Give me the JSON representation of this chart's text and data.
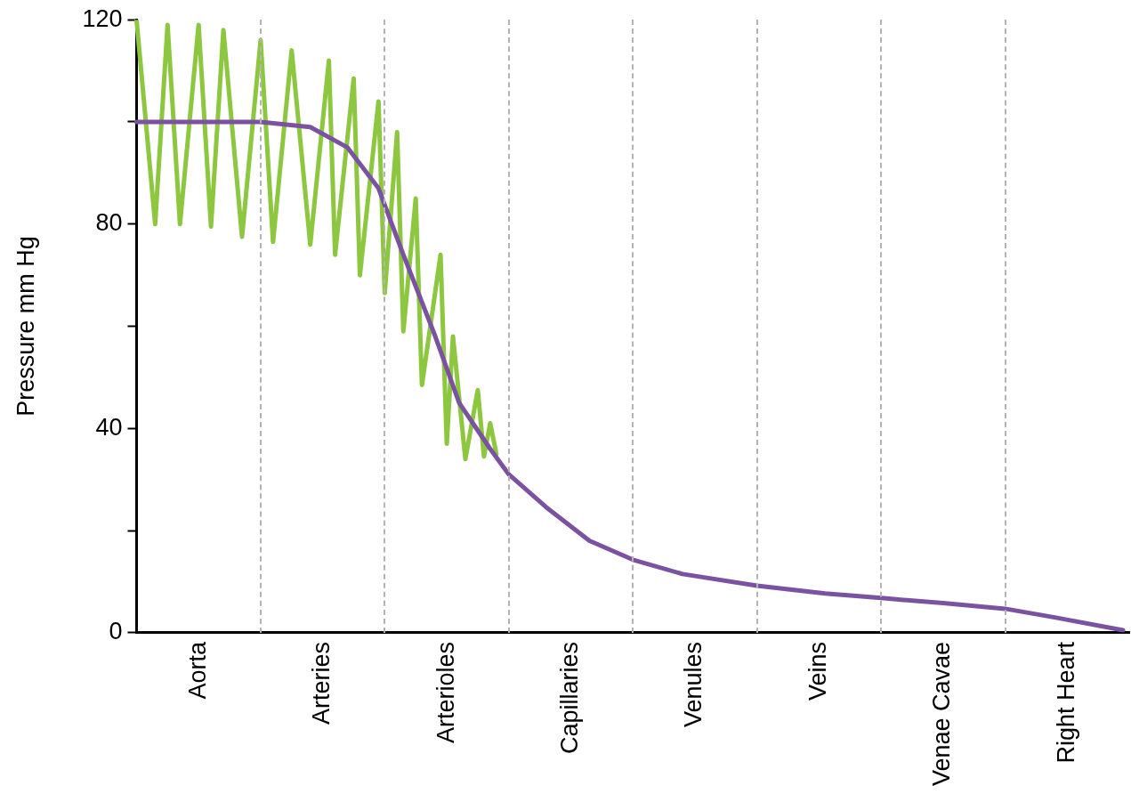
{
  "chart_data": {
    "type": "line",
    "ylabel": "Pressure mm Hg",
    "categories": [
      null,
      null,
      null,
      null,
      null,
      null,
      null,
      null,
      null,
      null,
      "Aorta",
      null,
      null,
      null,
      null,
      null,
      null,
      null,
      null,
      null,
      null,
      null,
      null,
      null,
      null,
      null,
      null,
      null,
      null,
      null,
      "Arteries",
      null,
      null,
      null,
      null,
      null,
      null,
      null,
      null,
      null,
      null,
      null,
      null,
      null,
      null,
      null,
      null,
      null,
      null,
      null,
      "Arterioles",
      null,
      null,
      null,
      null,
      null,
      null,
      null,
      null,
      null,
      null,
      null,
      null,
      null,
      null,
      null,
      null,
      null,
      null,
      null,
      "Capillaries",
      null,
      null,
      null,
      null,
      null,
      null,
      null,
      null,
      null,
      null,
      null,
      null,
      null,
      null,
      null,
      null,
      null,
      null,
      null,
      "Venules",
      null,
      null,
      null,
      null,
      null,
      null,
      null,
      null,
      null,
      null,
      null,
      null,
      null,
      null,
      null,
      null,
      null,
      null,
      null,
      "Veins",
      null,
      null,
      null,
      null,
      null,
      null,
      null,
      null,
      null,
      null,
      null,
      null,
      null,
      null,
      null,
      null,
      null,
      null,
      null,
      "Venae Cavae",
      null,
      null,
      null,
      null,
      null,
      null,
      null,
      null,
      null,
      null,
      null,
      null,
      null,
      null,
      null,
      null,
      null,
      null,
      null,
      "Right Heart",
      null,
      null,
      null,
      null,
      null,
      null,
      null,
      null,
      null,
      null
    ],
    "ylim": [
      0,
      120
    ],
    "yticks": [
      0,
      {
        "value": 20,
        "label": null
      },
      40,
      {
        "value": 60,
        "label": null
      },
      80,
      {
        "value": 100,
        "label": null
      },
      120
    ],
    "legend": false,
    "marker": "none",
    "line_style": "solid",
    "series": [
      {
        "color": "#7b52a1",
        "values": [
          100,
          null,
          null,
          null,
          null,
          null,
          null,
          null,
          null,
          null,
          100,
          null,
          null,
          null,
          null,
          null,
          null,
          null,
          null,
          null,
          100,
          null,
          null,
          null,
          null,
          null,
          null,
          null,
          99,
          null,
          null,
          null,
          null,
          null,
          95,
          null,
          null,
          null,
          null,
          87,
          null,
          null,
          null,
          74,
          null,
          null,
          null,
          null,
          58.5,
          null,
          null,
          null,
          45,
          null,
          null,
          null,
          null,
          36,
          null,
          null,
          31,
          null,
          null,
          null,
          null,
          null,
          24.6,
          null,
          null,
          null,
          null,
          null,
          null,
          18,
          null,
          null,
          null,
          null,
          null,
          null,
          14.3,
          null,
          null,
          null,
          null,
          null,
          null,
          null,
          11.5,
          null,
          null,
          null,
          null,
          null,
          null,
          null,
          null,
          null,
          null,
          null,
          9.2,
          null,
          null,
          null,
          null,
          null,
          null,
          null,
          null,
          null,
          null,
          7.7,
          null,
          null,
          null,
          null,
          null,
          null,
          null,
          null,
          6.8,
          null,
          null,
          null,
          null,
          null,
          null,
          null,
          null,
          null,
          5.8,
          null,
          null,
          null,
          null,
          null,
          null,
          null,
          null,
          null,
          4.7,
          null,
          null,
          null,
          null,
          null,
          null,
          null,
          3,
          null,
          null,
          null,
          null,
          null,
          null,
          null,
          null,
          null,
          null,
          0.5,
          null
        ]
      },
      {
        "color": "#8dc63f",
        "values": [
          120,
          null,
          null,
          80,
          null,
          119,
          null,
          80,
          null,
          null,
          119,
          null,
          79.5,
          null,
          118,
          null,
          null,
          77.5,
          null,
          null,
          116,
          null,
          76.5,
          null,
          null,
          114,
          null,
          null,
          76,
          null,
          null,
          112,
          74,
          null,
          null,
          108.5,
          70,
          null,
          null,
          104,
          66.5,
          null,
          98,
          59,
          null,
          85,
          48.5,
          null,
          null,
          74,
          37,
          58,
          null,
          34,
          null,
          47.5,
          34.5,
          41,
          35,
          null,
          null,
          null,
          null,
          null,
          null,
          null,
          null,
          null,
          null,
          null,
          null,
          null,
          null,
          null,
          null,
          null,
          null,
          null,
          null,
          null,
          null,
          null,
          null,
          null,
          null,
          null,
          null,
          null,
          null,
          null,
          null,
          null,
          null,
          null,
          null,
          null,
          null,
          null,
          null,
          null,
          null,
          null,
          null,
          null,
          null,
          null,
          null,
          null,
          null,
          null,
          null,
          null,
          null,
          null,
          null,
          null,
          null,
          null,
          null,
          null,
          null,
          null,
          null,
          null,
          null,
          null,
          null,
          null,
          null,
          null,
          null,
          null,
          null,
          null,
          null,
          null,
          null,
          null,
          null,
          null,
          null,
          null,
          null,
          null,
          null,
          null,
          null,
          null,
          null,
          null,
          null,
          null,
          null,
          null,
          null,
          null,
          null,
          null,
          null,
          null,
          null
        ]
      }
    ]
  }
}
